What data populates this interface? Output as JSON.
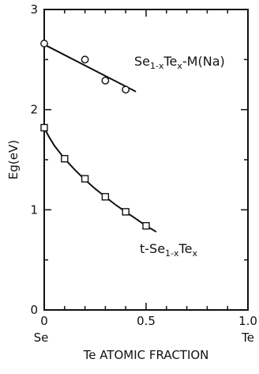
{
  "chart_data": {
    "type": "scatter",
    "title": "",
    "xlabel": "Te ATOMIC FRACTION",
    "ylabel": "Eg(eV)",
    "xlim": [
      0,
      1.0
    ],
    "ylim": [
      0,
      3
    ],
    "x_ticks": [
      0,
      0.5,
      1.0
    ],
    "x_tick_labels": [
      "0",
      "0.5",
      "1.0"
    ],
    "y_ticks": [
      0,
      1,
      2,
      3
    ],
    "y_tick_labels": [
      "0",
      "1",
      "2",
      "3"
    ],
    "x_end_labels": {
      "left": "Se",
      "right": "Te"
    },
    "grid": false,
    "legend": "none (series labeled directly on plot)",
    "series": [
      {
        "name": "Se1-xTex-M(Na)",
        "label_parts": {
          "a": "Se",
          "b": "1-x",
          "c": "Te",
          "d": "x",
          "e": "-M(Na)"
        },
        "marker": "circle",
        "x": [
          0.0,
          0.2,
          0.3,
          0.4
        ],
        "y": [
          2.66,
          2.5,
          2.29,
          2.2
        ],
        "fit_x": [
          0.0,
          0.45
        ],
        "fit_y": [
          2.65,
          2.18
        ]
      },
      {
        "name": "t-Se1-xTex",
        "label_parts": {
          "a": "t-Se",
          "b": "1-x",
          "c": "Te",
          "d": "x"
        },
        "marker": "square",
        "x": [
          0.0,
          0.1,
          0.2,
          0.3,
          0.4,
          0.5
        ],
        "y": [
          1.82,
          1.51,
          1.31,
          1.13,
          0.98,
          0.84
        ],
        "fit_x": [
          0.0,
          0.02,
          0.05,
          0.1,
          0.15,
          0.2,
          0.25,
          0.3,
          0.35,
          0.4,
          0.45,
          0.5,
          0.55
        ],
        "fit_y": [
          1.82,
          1.74,
          1.64,
          1.51,
          1.4,
          1.3,
          1.21,
          1.13,
          1.05,
          0.98,
          0.91,
          0.84,
          0.78
        ]
      }
    ]
  }
}
